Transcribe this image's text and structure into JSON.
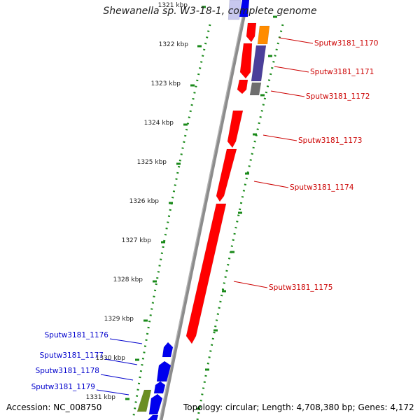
{
  "title": "Shewanella sp. W3-18-1, complete genome",
  "footer": {
    "accession_label": "Accession:",
    "accession": "NC_008750",
    "topology_label": "Topology:",
    "topology": "circular",
    "length_label": "Length:",
    "length": "4,708,380 bp",
    "genes_label": "Genes:",
    "genes": "4,172"
  },
  "ruler": {
    "unit": "kbp",
    "ticks": [
      "1321 kbp",
      "1322 kbp",
      "1323 kbp",
      "1324 kbp",
      "1325 kbp",
      "1326 kbp",
      "1327 kbp",
      "1328 kbp",
      "1329 kbp",
      "1330 kbp",
      "1331 kbp"
    ]
  },
  "genes_forward": [
    "Sputw3181_1170",
    "Sputw3181_1171",
    "Sputw3181_1172",
    "Sputw3181_1173",
    "Sputw3181_1174",
    "Sputw3181_1175"
  ],
  "genes_reverse": [
    "Sputw3181_1176",
    "Sputw3181_1177",
    "Sputw3181_1178",
    "Sputw3181_1179"
  ],
  "colors": {
    "forward_label": "#cc0000",
    "reverse_label": "#0000cc",
    "gene_red": "#ff0000",
    "gene_blue": "#0000ee",
    "gene_orange": "#ff8c00",
    "gene_purple": "#4b3f9a",
    "gene_gray": "#6e6e6e",
    "gene_olive": "#6b8e23",
    "backbone": "#8c8c8c",
    "ticks": "#1a8a1a"
  }
}
